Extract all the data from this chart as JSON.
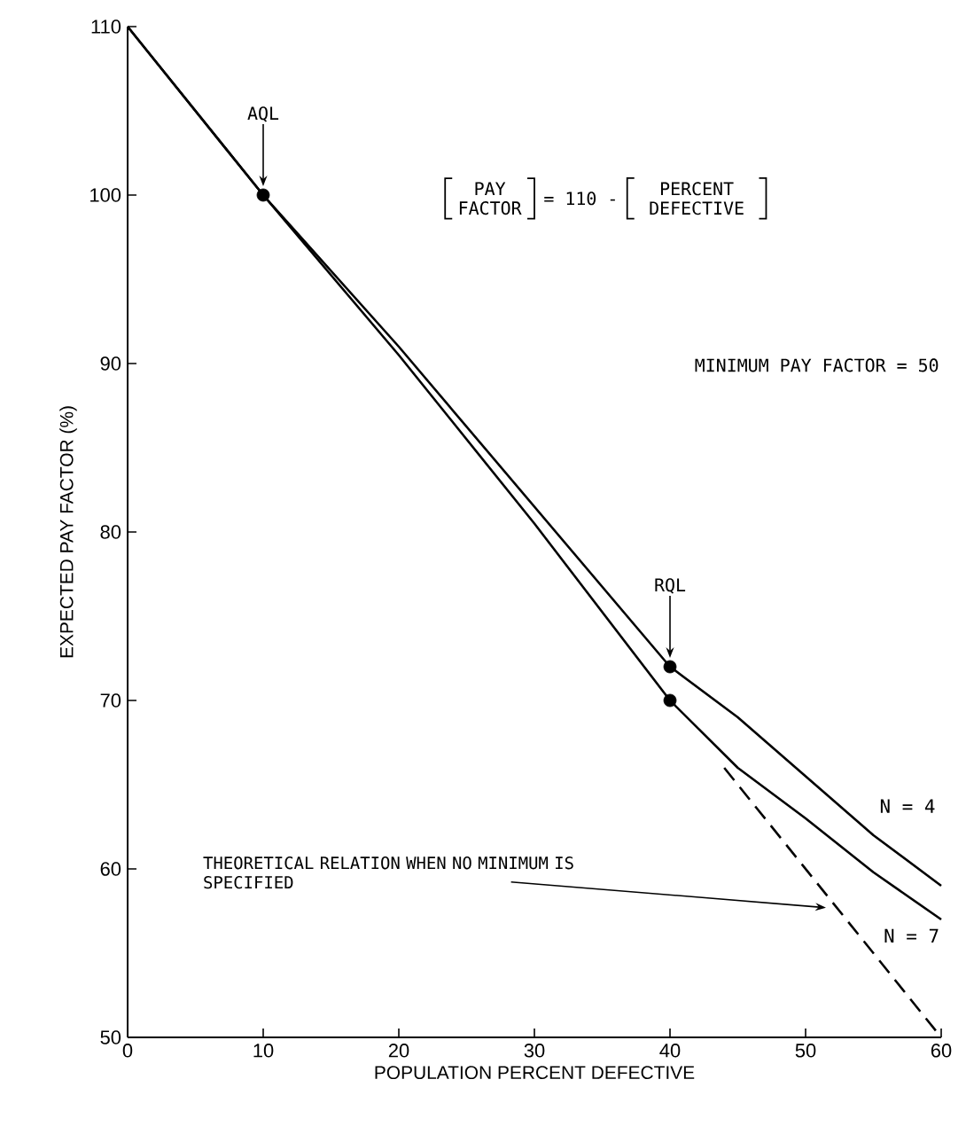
{
  "chart_data": {
    "type": "line",
    "xlabel": "POPULATION PERCENT DEFECTIVE",
    "ylabel": "EXPECTED PAY FACTOR (%)",
    "xlim": [
      0,
      60
    ],
    "ylim": [
      50,
      110
    ],
    "xticks": [
      0,
      10,
      20,
      30,
      40,
      50,
      60
    ],
    "yticks": [
      50,
      60,
      70,
      80,
      90,
      100,
      110
    ],
    "series": [
      {
        "name": "N = 4",
        "color": "#000000",
        "x": [
          0,
          10,
          20,
          30,
          40,
          45,
          50,
          55,
          60
        ],
        "values": [
          110,
          100,
          91,
          81.5,
          72,
          69,
          65.5,
          62,
          59
        ]
      },
      {
        "name": "N = 7",
        "color": "#000000",
        "x": [
          0,
          10,
          20,
          30,
          40,
          45,
          50,
          55,
          60
        ],
        "values": [
          110,
          100,
          90.5,
          80.5,
          70,
          66,
          63,
          59.8,
          57
        ]
      },
      {
        "name": "THEORETICAL RELATION WHEN NO MINIMUM IS SPECIFIED",
        "color": "#000000",
        "line_style": "dashed",
        "x": [
          44,
          60
        ],
        "values": [
          66,
          50
        ]
      },
      {
        "type": "scatter",
        "marker": "circle",
        "color": "#000000",
        "x": [
          10,
          40,
          40
        ],
        "values": [
          100,
          72,
          70
        ]
      }
    ],
    "annotations": [
      {
        "text": "AQL",
        "x": 10,
        "y": 100
      },
      {
        "text": "RQL",
        "x": 40,
        "y": 72
      },
      "MINIMUM PAY FACTOR = 50",
      "PAY FACTOR",
      "= 110 -",
      "PERCENT DEFECTIVE"
    ]
  }
}
